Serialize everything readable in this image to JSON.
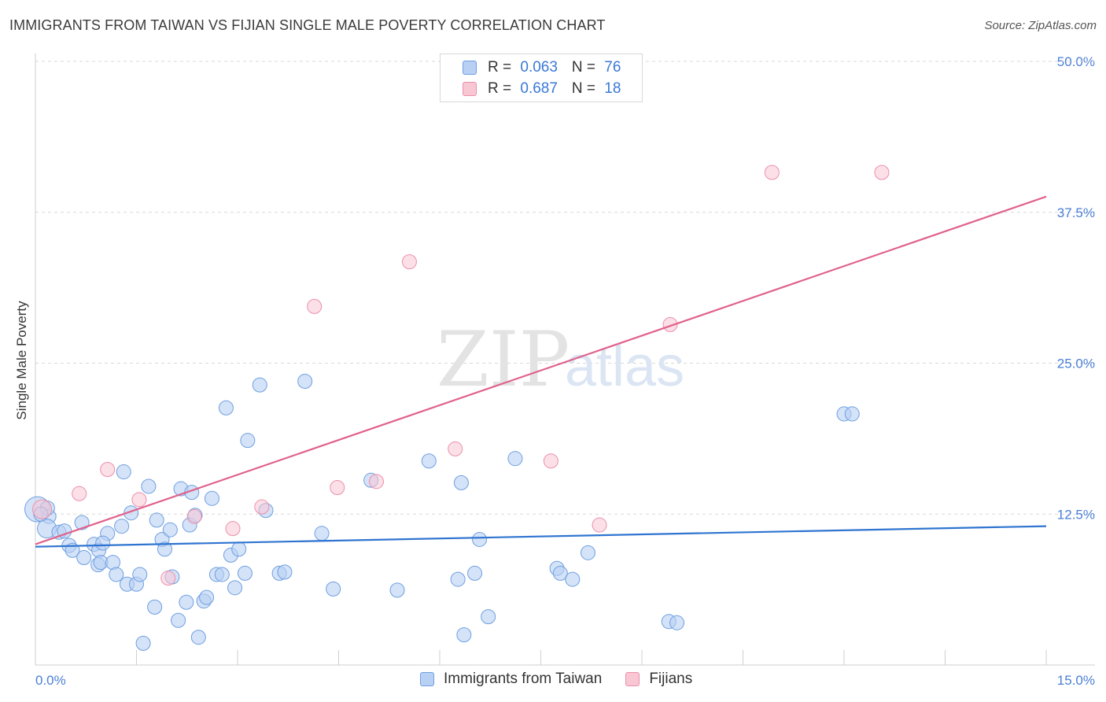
{
  "title": "IMMIGRANTS FROM TAIWAN VS FIJIAN SINGLE MALE POVERTY CORRELATION CHART",
  "source": "Source: ZipAtlas.com",
  "watermark": {
    "zip": "ZIP",
    "atlas": "atlas"
  },
  "colors": {
    "blue_fill": "#b8d0f4",
    "blue_stroke": "#6f9fe0",
    "blue_line": "#2f74d0",
    "pink_fill": "#f9c6d4",
    "pink_stroke": "#eb8fab",
    "pink_line": "#e0628c",
    "tick_text": "#4a7fd6",
    "grid": "#d9d9d9"
  },
  "legend": {
    "rows": [
      {
        "r_label": "R = ",
        "r_value": "0.063",
        "n_label": "N = ",
        "n_value": "76"
      },
      {
        "r_label": "R = ",
        "r_value": "0.687",
        "n_label": "N = ",
        "n_value": "18"
      }
    ]
  },
  "bottom_legend": {
    "series1": "Immigrants from Taiwan",
    "series2": "Fijians"
  },
  "chart_data": {
    "type": "scatter",
    "title": "IMMIGRANTS FROM TAIWAN VS FIJIAN SINGLE MALE POVERTY CORRELATION CHART",
    "xlabel": "",
    "ylabel": "Single Male Poverty",
    "xlim": [
      0,
      15
    ],
    "ylim": [
      0,
      50
    ],
    "x_tick_labels": [
      "0.0%",
      "15.0%"
    ],
    "y_ticks": [
      12.5,
      25.0,
      37.5,
      50.0
    ],
    "y_tick_labels": [
      "12.5%",
      "25.0%",
      "37.5%",
      "50.0%"
    ],
    "grid": true,
    "series": [
      {
        "name": "Immigrants from Taiwan",
        "R": 0.063,
        "N": 76,
        "trend": [
          [
            0,
            9.8
          ],
          [
            15,
            11.5
          ]
        ],
        "points": [
          [
            0.03,
            12.9
          ],
          [
            0.2,
            12.3
          ],
          [
            0.17,
            11.3
          ],
          [
            0.35,
            11.0
          ],
          [
            0.43,
            11.1
          ],
          [
            0.5,
            9.9
          ],
          [
            0.55,
            9.5
          ],
          [
            0.69,
            11.8
          ],
          [
            0.72,
            8.9
          ],
          [
            0.87,
            10.0
          ],
          [
            0.93,
            8.3
          ],
          [
            0.94,
            9.5
          ],
          [
            0.97,
            8.5
          ],
          [
            1.07,
            10.9
          ],
          [
            1.15,
            8.5
          ],
          [
            1.2,
            7.5
          ],
          [
            1.28,
            11.5
          ],
          [
            1.31,
            16.0
          ],
          [
            1.36,
            6.7
          ],
          [
            1.42,
            12.6
          ],
          [
            1.5,
            6.7
          ],
          [
            1.55,
            7.5
          ],
          [
            1.6,
            1.8
          ],
          [
            1.68,
            14.8
          ],
          [
            1.77,
            4.8
          ],
          [
            1.8,
            12.0
          ],
          [
            1.88,
            10.4
          ],
          [
            1.92,
            9.6
          ],
          [
            2.03,
            7.3
          ],
          [
            2.12,
            3.7
          ],
          [
            2.16,
            14.6
          ],
          [
            2.24,
            5.2
          ],
          [
            2.29,
            11.6
          ],
          [
            2.32,
            14.3
          ],
          [
            2.37,
            12.4
          ],
          [
            2.42,
            2.3
          ],
          [
            2.5,
            5.3
          ],
          [
            2.54,
            5.6
          ],
          [
            2.62,
            13.8
          ],
          [
            2.69,
            7.5
          ],
          [
            2.77,
            7.5
          ],
          [
            2.83,
            21.3
          ],
          [
            2.9,
            9.1
          ],
          [
            2.96,
            6.4
          ],
          [
            3.02,
            9.6
          ],
          [
            3.11,
            7.6
          ],
          [
            3.15,
            18.6
          ],
          [
            3.33,
            23.2
          ],
          [
            3.42,
            12.8
          ],
          [
            3.62,
            7.6
          ],
          [
            3.7,
            7.7
          ],
          [
            4.0,
            23.5
          ],
          [
            4.25,
            10.9
          ],
          [
            4.42,
            6.3
          ],
          [
            4.98,
            15.3
          ],
          [
            5.37,
            6.2
          ],
          [
            5.84,
            16.9
          ],
          [
            6.27,
            7.1
          ],
          [
            6.32,
            15.1
          ],
          [
            6.36,
            2.5
          ],
          [
            6.52,
            7.6
          ],
          [
            6.59,
            10.4
          ],
          [
            6.72,
            4.0
          ],
          [
            7.12,
            17.1
          ],
          [
            7.74,
            8.0
          ],
          [
            7.79,
            7.6
          ],
          [
            7.97,
            7.1
          ],
          [
            8.2,
            9.3
          ],
          [
            9.4,
            3.6
          ],
          [
            9.52,
            3.5
          ],
          [
            12.0,
            20.8
          ],
          [
            12.12,
            20.8
          ],
          [
            0.18,
            13.0
          ],
          [
            0.08,
            12.5
          ],
          [
            1.0,
            10.1
          ],
          [
            2.0,
            11.2
          ]
        ]
      },
      {
        "name": "Fijians",
        "R": 0.687,
        "N": 18,
        "trend": [
          [
            0,
            10.0
          ],
          [
            15,
            38.8
          ]
        ],
        "points": [
          [
            0.1,
            12.9
          ],
          [
            0.65,
            14.2
          ],
          [
            1.07,
            16.2
          ],
          [
            1.54,
            13.7
          ],
          [
            1.97,
            7.2
          ],
          [
            2.36,
            12.3
          ],
          [
            2.93,
            11.3
          ],
          [
            3.36,
            13.1
          ],
          [
            4.14,
            29.7
          ],
          [
            4.48,
            14.7
          ],
          [
            5.06,
            15.2
          ],
          [
            5.55,
            33.4
          ],
          [
            6.23,
            17.9
          ],
          [
            7.65,
            16.9
          ],
          [
            8.37,
            11.6
          ],
          [
            9.42,
            28.2
          ],
          [
            10.93,
            40.8
          ],
          [
            12.56,
            40.8
          ]
        ]
      }
    ]
  }
}
